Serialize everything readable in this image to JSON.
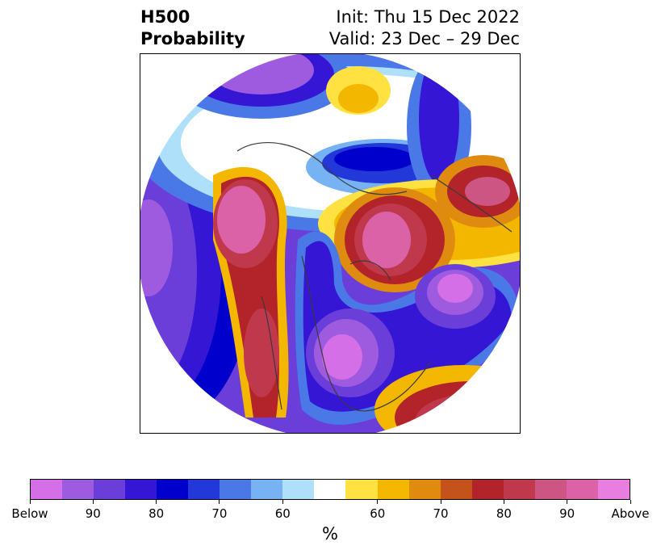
{
  "title": {
    "left_line1": "H500",
    "left_line2": "Probability",
    "right_line1": "Init: Thu 15 Dec 2022",
    "right_line2": "Valid: 23 Dec – 29 Dec"
  },
  "colorbar": {
    "colors": [
      "#d46fe8",
      "#9f5bdf",
      "#6c3ed9",
      "#3516d4",
      "#0000cc",
      "#2338d8",
      "#4a78e6",
      "#77b2f2",
      "#aee0fa",
      "#ffffff",
      "#ffe141",
      "#f3b700",
      "#df8b10",
      "#c4521b",
      "#b2232a",
      "#c0384c",
      "#cd5584",
      "#dc62a8",
      "#e77ee0"
    ],
    "labels": [
      "Below",
      "90",
      "80",
      "70",
      "60",
      "60",
      "70",
      "80",
      "90",
      "Above"
    ],
    "units": "%"
  }
}
